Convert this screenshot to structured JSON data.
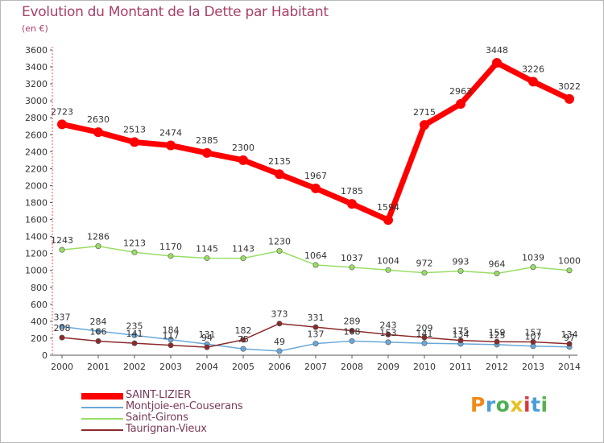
{
  "title": "Evolution du Montant de la Dette par Habitant",
  "subtitle": "(en €)",
  "logo": {
    "text": "Proxiti",
    "letters": [
      "P",
      "r",
      "o",
      "x",
      "i",
      "t",
      "i"
    ]
  },
  "chart_data": {
    "type": "line",
    "title": "Evolution du Montant de la Dette par Habitant",
    "subtitle": "(en €)",
    "xlabel": "",
    "ylabel": "",
    "ylim": [
      0,
      3600
    ],
    "yticks": [
      0,
      200,
      400,
      600,
      800,
      1000,
      1200,
      1400,
      1600,
      1800,
      2000,
      2200,
      2400,
      2600,
      2800,
      3000,
      3200,
      3400,
      3600
    ],
    "grid": false,
    "legend": "bottom-left",
    "x": [
      "2000",
      "2001",
      "2002",
      "2003",
      "2004",
      "2005",
      "2006",
      "2007",
      "2008",
      "2009",
      "2010",
      "2011",
      "2012",
      "2013",
      "2014"
    ],
    "series": [
      {
        "name": "SAINT-LIZIER",
        "color": "#ff0000",
        "values": [
          2723,
          2630,
          2513,
          2474,
          2385,
          2300,
          2135,
          1967,
          1785,
          1594,
          2715,
          2963,
          3448,
          3226,
          3022
        ],
        "labels": [
          "2723",
          "2630",
          "2513",
          "2474",
          "2385",
          "2300",
          "2135",
          "1967",
          "1785",
          "1594",
          "2715",
          "2963",
          "3448",
          "3226",
          "3022"
        ]
      },
      {
        "name": "Montjoie-en-Couserans",
        "color": "#6aa8d8",
        "values": [
          337,
          284,
          235,
          184,
          131,
          75,
          49,
          137,
          168,
          153,
          141,
          134,
          125,
          107,
          97
        ],
        "labels": [
          "337",
          "284",
          "235",
          "184",
          "131",
          "75",
          "49",
          "137",
          "168",
          "153",
          "141",
          "134",
          "125",
          "107",
          "97"
        ]
      },
      {
        "name": "Saint-Girons",
        "color": "#99dd66",
        "values": [
          1243,
          1286,
          1213,
          1170,
          1145,
          1143,
          1230,
          1064,
          1037,
          1004,
          972,
          993,
          964,
          1039,
          1000
        ],
        "labels": [
          "1243",
          "1286",
          "1213",
          "1170",
          "1145",
          "1143",
          "1230",
          "1064",
          "1037",
          "1004",
          "972",
          "993",
          "964",
          "1039",
          "1000"
        ]
      },
      {
        "name": "Taurignan-Vieux",
        "color": "#8b2a2a",
        "values": [
          208,
          166,
          141,
          117,
          94,
          182,
          373,
          331,
          289,
          243,
          209,
          175,
          159,
          157,
          134
        ],
        "labels": [
          "208",
          "166",
          "141",
          "117",
          "94",
          "182",
          "373",
          "331",
          "289",
          "243",
          "209",
          "175",
          "159",
          "157",
          "134"
        ]
      }
    ]
  }
}
